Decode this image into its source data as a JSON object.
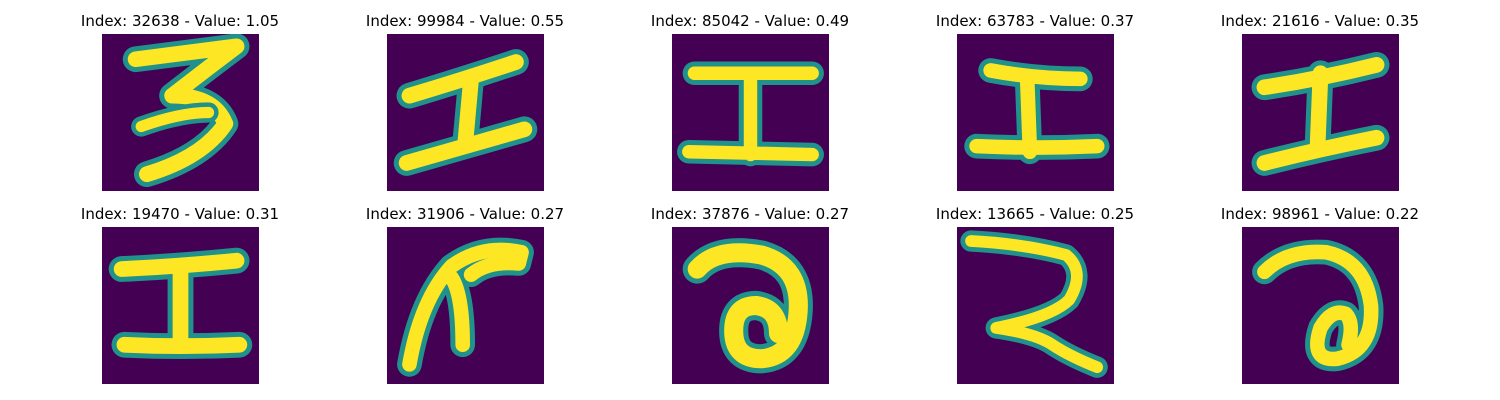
{
  "colors": {
    "background": "#440154",
    "stroke_core": "#fde725",
    "stroke_edge": "#21918c"
  },
  "panels": [
    {
      "title": "Index: 32638 - Value: 1.05",
      "glyph": "digit-three"
    },
    {
      "title": "Index: 99984 - Value: 0.55",
      "glyph": "i-beam"
    },
    {
      "title": "Index: 85042 - Value: 0.49",
      "glyph": "i-beam"
    },
    {
      "title": "Index: 63783 - Value: 0.37",
      "glyph": "i-beam"
    },
    {
      "title": "Index: 21616 - Value: 0.35",
      "glyph": "i-beam"
    },
    {
      "title": "Index: 19470 - Value: 0.31",
      "glyph": "i-beam"
    },
    {
      "title": "Index: 31906 - Value: 0.27",
      "glyph": "hook-curve"
    },
    {
      "title": "Index: 37876 - Value: 0.27",
      "glyph": "loop-curve"
    },
    {
      "title": "Index: 13665 - Value: 0.25",
      "glyph": "z-curve"
    },
    {
      "title": "Index: 98961 - Value: 0.22",
      "glyph": "loop-curve"
    }
  ]
}
